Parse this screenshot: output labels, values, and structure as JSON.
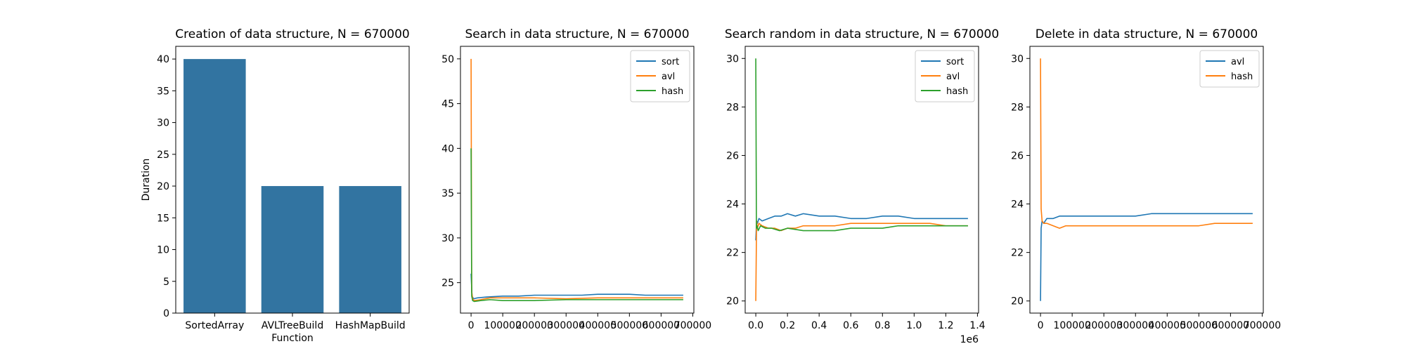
{
  "colors": {
    "sort": "#1f77b4",
    "avl": "#ff7f0e",
    "hash": "#2ca02c",
    "bar": "#3274a1"
  },
  "chart_data": [
    {
      "type": "bar",
      "title": "Creation of data structure, N = 670000",
      "xlabel": "Function",
      "ylabel": "Duration",
      "categories": [
        "SortedArray",
        "AVLTreeBuild",
        "HashMapBuild"
      ],
      "values": [
        40,
        20,
        20
      ],
      "ylim": [
        0,
        42
      ],
      "yticks": [
        0,
        5,
        10,
        15,
        20,
        25,
        30,
        35,
        40
      ],
      "yticklabels": [
        "0",
        "5",
        "10",
        "15",
        "20",
        "25",
        "30",
        "35",
        "40"
      ],
      "grid": false
    },
    {
      "type": "line",
      "title": "Search in data structure, N = 670000",
      "xlim": [
        -33500,
        703500
      ],
      "ylim": [
        21.6,
        51.4
      ],
      "xticks": [
        0,
        100000,
        200000,
        300000,
        400000,
        500000,
        600000,
        700000
      ],
      "xticklabels": [
        "0",
        "100000",
        "200000",
        "300000",
        "400000",
        "500000",
        "600000",
        "700000"
      ],
      "yticks": [
        25,
        30,
        35,
        40,
        45,
        50
      ],
      "yticklabels": [
        "25",
        "30",
        "35",
        "40",
        "45",
        "50"
      ],
      "legend": "top-right",
      "grid": false,
      "series": [
        {
          "name": "sort",
          "color_key": "sort",
          "x": [
            0,
            3000,
            8000,
            20000,
            50000,
            100000,
            150000,
            200000,
            250000,
            300000,
            350000,
            400000,
            450000,
            500000,
            550000,
            600000,
            670000
          ],
          "y": [
            26,
            23.5,
            23.2,
            23.3,
            23.4,
            23.5,
            23.5,
            23.6,
            23.6,
            23.6,
            23.6,
            23.7,
            23.7,
            23.7,
            23.6,
            23.6,
            23.6
          ]
        },
        {
          "name": "avl",
          "color_key": "avl",
          "x": [
            0,
            2000,
            5000,
            10000,
            30000,
            60000,
            100000,
            200000,
            300000,
            400000,
            500000,
            600000,
            670000
          ],
          "y": [
            50,
            24,
            23.2,
            23.0,
            23.1,
            23.3,
            23.3,
            23.3,
            23.2,
            23.3,
            23.3,
            23.3,
            23.3
          ]
        },
        {
          "name": "hash",
          "color_key": "hash",
          "x": [
            0,
            2000,
            5000,
            10000,
            30000,
            60000,
            100000,
            200000,
            300000,
            400000,
            500000,
            600000,
            670000
          ],
          "y": [
            40,
            23.5,
            23.0,
            22.9,
            23.0,
            23.1,
            23.0,
            23.0,
            23.1,
            23.1,
            23.1,
            23.1,
            23.1
          ]
        }
      ]
    },
    {
      "type": "line",
      "title": "Search random in data structure, N = 670000",
      "x_multiplier": "1e6",
      "xlim": [
        -0.067,
        1.407
      ],
      "ylim": [
        19.5,
        30.5
      ],
      "xticks": [
        0.0,
        0.2,
        0.4,
        0.6,
        0.8,
        1.0,
        1.2,
        1.4
      ],
      "xticklabels": [
        "0.0",
        "0.2",
        "0.4",
        "0.6",
        "0.8",
        "1.0",
        "1.2",
        "1.4"
      ],
      "yticks": [
        20,
        22,
        24,
        26,
        28,
        30
      ],
      "yticklabels": [
        "20",
        "22",
        "24",
        "26",
        "28",
        "30"
      ],
      "legend": "top-right",
      "grid": false,
      "series": [
        {
          "name": "sort",
          "color_key": "sort",
          "x": [
            0,
            0.005,
            0.01,
            0.02,
            0.04,
            0.08,
            0.12,
            0.16,
            0.2,
            0.25,
            0.3,
            0.4,
            0.5,
            0.6,
            0.7,
            0.8,
            0.9,
            1.0,
            1.1,
            1.2,
            1.34
          ],
          "y": [
            22.5,
            23.3,
            23.2,
            23.4,
            23.3,
            23.4,
            23.5,
            23.5,
            23.6,
            23.5,
            23.6,
            23.5,
            23.5,
            23.4,
            23.4,
            23.5,
            23.5,
            23.4,
            23.4,
            23.4,
            23.4
          ]
        },
        {
          "name": "avl",
          "color_key": "avl",
          "x": [
            0,
            0.005,
            0.01,
            0.02,
            0.04,
            0.08,
            0.12,
            0.16,
            0.2,
            0.25,
            0.3,
            0.4,
            0.5,
            0.6,
            0.7,
            0.8,
            0.9,
            1.0,
            1.1,
            1.2,
            1.34
          ],
          "y": [
            20,
            23.3,
            23.0,
            23.2,
            23.1,
            23.0,
            23.0,
            22.9,
            23.0,
            23.0,
            23.1,
            23.1,
            23.1,
            23.2,
            23.2,
            23.2,
            23.2,
            23.2,
            23.2,
            23.1,
            23.1
          ]
        },
        {
          "name": "hash",
          "color_key": "hash",
          "x": [
            0,
            0.004,
            0.008,
            0.015,
            0.03,
            0.06,
            0.1,
            0.15,
            0.2,
            0.3,
            0.4,
            0.5,
            0.6,
            0.7,
            0.8,
            0.9,
            1.0,
            1.1,
            1.2,
            1.34
          ],
          "y": [
            30,
            23.0,
            23.1,
            22.9,
            23.1,
            23.0,
            23.0,
            22.9,
            23.0,
            22.9,
            22.9,
            22.9,
            23.0,
            23.0,
            23.0,
            23.1,
            23.1,
            23.1,
            23.1,
            23.1
          ]
        }
      ]
    },
    {
      "type": "line",
      "title": "Delete in data structure, N = 670000",
      "xlim": [
        -33500,
        703500
      ],
      "ylim": [
        19.5,
        30.5
      ],
      "xticks": [
        0,
        100000,
        200000,
        300000,
        400000,
        500000,
        600000,
        700000
      ],
      "xticklabels": [
        "0",
        "100000",
        "200000",
        "300000",
        "400000",
        "500000",
        "600000",
        "700000"
      ],
      "yticks": [
        20,
        22,
        24,
        26,
        28,
        30
      ],
      "yticklabels": [
        "20",
        "22",
        "24",
        "26",
        "28",
        "30"
      ],
      "legend": "top-right",
      "grid": false,
      "series": [
        {
          "name": "avl",
          "color_key": "sort",
          "x": [
            0,
            2000,
            5000,
            10000,
            20000,
            40000,
            60000,
            80000,
            100000,
            150000,
            200000,
            250000,
            300000,
            350000,
            400000,
            450000,
            500000,
            550000,
            600000,
            670000
          ],
          "y": [
            20,
            23.0,
            23.3,
            23.2,
            23.4,
            23.4,
            23.5,
            23.5,
            23.5,
            23.5,
            23.5,
            23.5,
            23.5,
            23.6,
            23.6,
            23.6,
            23.6,
            23.6,
            23.6,
            23.6
          ]
        },
        {
          "name": "hash",
          "color_key": "avl",
          "x": [
            0,
            2000,
            5000,
            10000,
            20000,
            40000,
            60000,
            80000,
            100000,
            150000,
            200000,
            250000,
            300000,
            350000,
            400000,
            450000,
            500000,
            550000,
            600000,
            670000
          ],
          "y": [
            30,
            23.8,
            23.3,
            23.2,
            23.2,
            23.1,
            23.0,
            23.1,
            23.1,
            23.1,
            23.1,
            23.1,
            23.1,
            23.1,
            23.1,
            23.1,
            23.1,
            23.2,
            23.2,
            23.2
          ]
        }
      ]
    }
  ]
}
